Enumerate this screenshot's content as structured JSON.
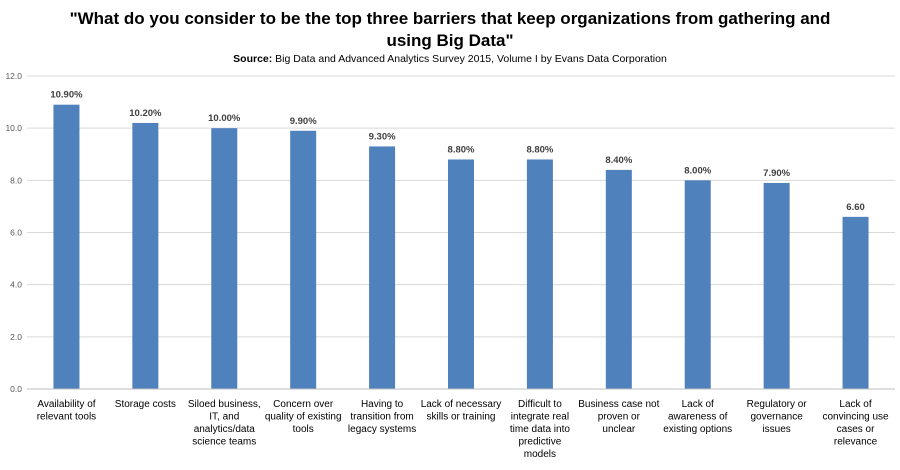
{
  "chart_data": {
    "type": "bar",
    "title_lines": [
      "\"What do you consider to be the top three barriers that keep organizations from gathering and",
      "using Big Data\""
    ],
    "subtitle_label": "Source:",
    "subtitle_text": " Big Data and Advanced Analytics Survey 2015, Volume I by Evans Data Corporation",
    "categories": [
      [
        "Availability of",
        "relevant tools"
      ],
      [
        "Storage costs"
      ],
      [
        "Siloed business,",
        "IT, and",
        "analytics/data",
        "science teams"
      ],
      [
        "Concern over",
        "quality of existing",
        "tools"
      ],
      [
        "Having to",
        "transition from",
        "legacy systems"
      ],
      [
        "Lack of necessary",
        "skills or training"
      ],
      [
        "Difficult to",
        "integrate real",
        "time data into",
        "predictive",
        "models"
      ],
      [
        "Business case not",
        "proven or",
        "unclear"
      ],
      [
        "Lack of",
        "awareness of",
        "existing options"
      ],
      [
        "Regulatory or",
        "governance",
        "issues"
      ],
      [
        "Lack of",
        "convincing use",
        "cases or",
        "relevance"
      ]
    ],
    "values": [
      10.9,
      10.2,
      10.0,
      9.9,
      9.3,
      8.8,
      8.8,
      8.4,
      8.0,
      7.9,
      6.6
    ],
    "data_labels": [
      "10.90%",
      "10.20%",
      "10.00%",
      "9.90%",
      "9.30%",
      "8.80%",
      "8.80%",
      "8.40%",
      "8.00%",
      "7.90%",
      "6.60"
    ],
    "ylim": [
      0,
      12
    ],
    "yticks": [
      "0.0",
      "2.0",
      "4.0",
      "6.0",
      "8.0",
      "10.0",
      "12.0"
    ],
    "xlabel": "",
    "ylabel": "",
    "grid": true,
    "legend": "none",
    "colors": {
      "bar": "#4f81bd",
      "grid": "#d9d9d9",
      "axis": "#bfbfbf"
    }
  }
}
